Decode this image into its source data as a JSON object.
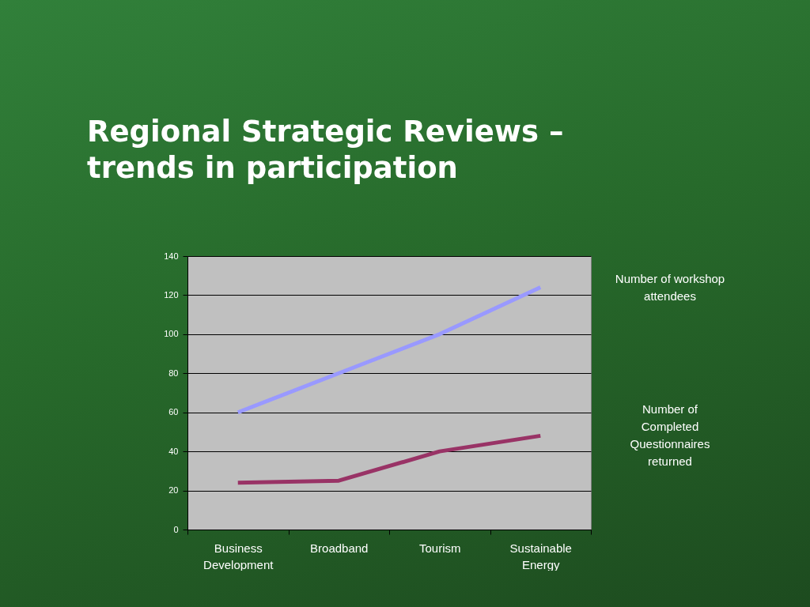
{
  "chart_data": {
    "type": "line",
    "title": "Regional Strategic Reviews – trends in participation",
    "categories": [
      "Business Development",
      "Broadband",
      "Tourism",
      "Sustainable Energy"
    ],
    "series": [
      {
        "name": "Number of workshop attendees",
        "color": "#9999ff",
        "values": [
          60,
          80,
          100,
          124
        ]
      },
      {
        "name": "Number of Completed Questionnaires returned",
        "color": "#993366",
        "values": [
          24,
          25,
          40,
          48
        ]
      }
    ],
    "ylim": [
      0,
      140
    ],
    "yticks": [
      0,
      20,
      40,
      60,
      80,
      100,
      120,
      140
    ],
    "grid": "y"
  }
}
